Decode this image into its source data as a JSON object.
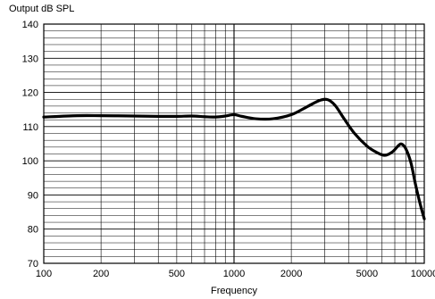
{
  "chart_data": {
    "type": "line",
    "title": "",
    "ylabel": "Output dB SPL",
    "xlabel": "Frequency",
    "x_scale": "log",
    "xlim": [
      100,
      10000
    ],
    "ylim": [
      70,
      140
    ],
    "grid": true,
    "x_tick_values": [
      100,
      200,
      500,
      1000,
      2000,
      5000,
      10000
    ],
    "x_tick_labels": [
      "100",
      "200",
      "500",
      "1000",
      "2000",
      "5000",
      "10000"
    ],
    "y_tick_values": [
      70,
      80,
      90,
      100,
      110,
      120,
      130,
      140
    ],
    "y_tick_labels": [
      "70",
      "80",
      "90",
      "100",
      "110",
      "120",
      "130",
      "140"
    ],
    "colors": {
      "line": "#000000",
      "grid": "#000000"
    },
    "series": [
      {
        "x": [
          100,
          150,
          200,
          300,
          400,
          500,
          600,
          700,
          800,
          900,
          1000,
          1100,
          1300,
          1600,
          2000,
          2400,
          2800,
          3100,
          3400,
          3800,
          4300,
          5000,
          5600,
          6200,
          6800,
          7300,
          7600,
          8000,
          8500,
          9000,
          9500,
          10000
        ],
        "y": [
          112.8,
          113.2,
          113.2,
          113.1,
          113.0,
          113.0,
          113.1,
          112.9,
          112.8,
          113.1,
          113.5,
          113.0,
          112.3,
          112.3,
          113.5,
          115.7,
          117.6,
          117.9,
          116.2,
          112.2,
          108.0,
          104.3,
          102.5,
          101.6,
          102.6,
          104.4,
          104.9,
          103.5,
          99.5,
          93.0,
          87.5,
          83.0
        ]
      }
    ]
  }
}
